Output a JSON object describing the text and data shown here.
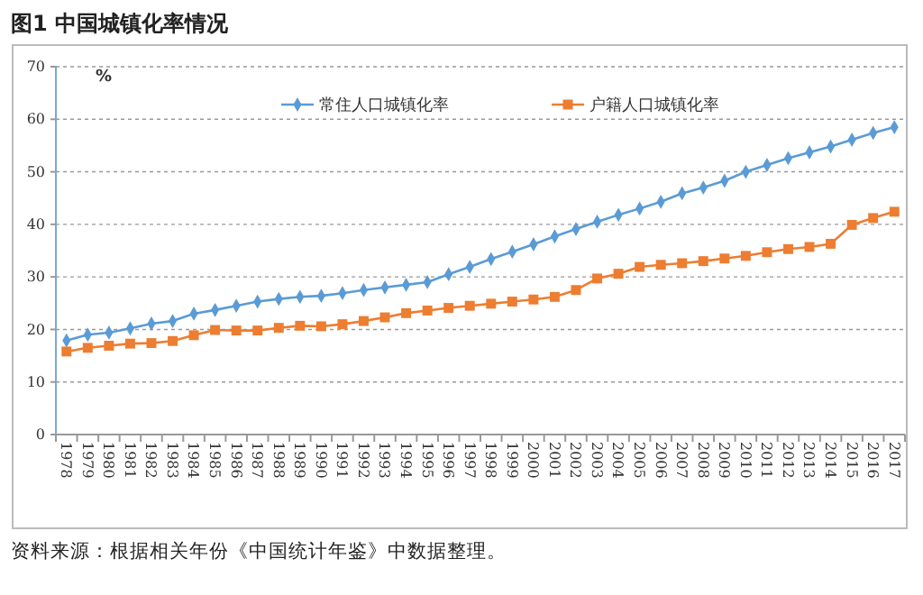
{
  "chart_data": {
    "type": "line",
    "title": "图1  中国城镇化率情况",
    "ylabel": "%",
    "annotations": [
      "资料来源：根据相关年份《中国统计年鉴》中数据整理。"
    ],
    "categories": [
      "1978",
      "1979",
      "1980",
      "1981",
      "1982",
      "1983",
      "1984",
      "1985",
      "1986",
      "1987",
      "1988",
      "1989",
      "1990",
      "1991",
      "1992",
      "1993",
      "1994",
      "1995",
      "1996",
      "1997",
      "1998",
      "1999",
      "2000",
      "2001",
      "2002",
      "2003",
      "2004",
      "2005",
      "2006",
      "2007",
      "2008",
      "2009",
      "2010",
      "2011",
      "2012",
      "2013",
      "2014",
      "2015",
      "2016",
      "2017"
    ],
    "series": [
      {
        "name": "常住人口城镇化率",
        "color": "#5b9bd5",
        "marker": "diamond",
        "values": [
          17.9,
          19.0,
          19.4,
          20.2,
          21.1,
          21.6,
          23.0,
          23.7,
          24.5,
          25.3,
          25.8,
          26.2,
          26.4,
          26.9,
          27.5,
          28.0,
          28.5,
          29.0,
          30.5,
          31.9,
          33.4,
          34.8,
          36.2,
          37.7,
          39.1,
          40.5,
          41.8,
          43.0,
          44.3,
          45.9,
          47.0,
          48.3,
          50.0,
          51.3,
          52.6,
          53.7,
          54.8,
          56.1,
          57.4,
          58.5
        ]
      },
      {
        "name": "户籍人口城镇化率",
        "color": "#ed7d31",
        "marker": "square",
        "values": [
          15.8,
          16.5,
          16.9,
          17.3,
          17.4,
          17.8,
          18.9,
          19.9,
          19.8,
          19.8,
          20.3,
          20.7,
          20.6,
          21.0,
          21.6,
          22.3,
          23.1,
          23.6,
          24.1,
          24.5,
          24.9,
          25.3,
          25.7,
          26.2,
          27.5,
          29.7,
          30.6,
          31.9,
          32.3,
          32.6,
          33.0,
          33.5,
          34.0,
          34.7,
          35.3,
          35.7,
          36.3,
          39.9,
          41.2,
          42.4
        ]
      }
    ],
    "ylim": [
      0,
      70
    ],
    "yticks": [
      0,
      10,
      20,
      30,
      40,
      50,
      60,
      70
    ],
    "grid": "y",
    "legend": "top",
    "line_style": "solid"
  }
}
